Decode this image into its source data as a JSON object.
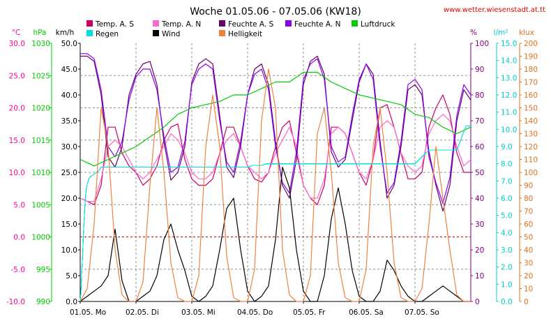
{
  "chart_data": {
    "type": "line",
    "title": "Woche 01.05.06 - 07.05.06 (KW18)",
    "source": "www.wetter.wiesenstadt.at.tt",
    "x_labels": [
      "01.05.  Mo",
      "02.05.  Di",
      "03.05.  Mi",
      "04.05.  Do",
      "05.05.  Fr",
      "06.05.  Sa",
      "07.05.  So"
    ],
    "x_range_hours": [
      0,
      168
    ],
    "grid": true,
    "axes": [
      {
        "id": "temp",
        "unit": "°C",
        "color": "#ff00a0",
        "min": -10,
        "max": 30,
        "ticks": [
          "30.0",
          "25.0",
          "20.0",
          "15.0",
          "10.0",
          "5.0",
          "0.0",
          "-5.0",
          "-10.0"
        ]
      },
      {
        "id": "press",
        "unit": "hPa",
        "color": "#00cc00",
        "min": 990,
        "max": 1030,
        "ticks": [
          "1030",
          "1025",
          "1020",
          "1015",
          "1010",
          "1005",
          "1000",
          "995",
          "990"
        ]
      },
      {
        "id": "wind",
        "unit": "km/h",
        "color": "#000000",
        "min": 0,
        "max": 50,
        "ticks": [
          "50.0",
          "45.0",
          "40.0",
          "35.0",
          "30.0",
          "25.0",
          "20.0",
          "15.0",
          "10.0",
          "5.0",
          "0.0"
        ]
      },
      {
        "id": "hum",
        "unit": "%",
        "color": "#800080",
        "min": 0,
        "max": 100,
        "ticks": [
          "100",
          "90",
          "80",
          "70",
          "60",
          "50",
          "40",
          "30",
          "20",
          "10",
          "0"
        ]
      },
      {
        "id": "rain",
        "unit": "l/m²",
        "color": "#00cccc",
        "min": 0,
        "max": 15,
        "ticks": [
          "15.0",
          "14.0",
          "13.0",
          "12.0",
          "11.0",
          "10.0",
          "9.0",
          "8.0",
          "7.0",
          "6.0",
          "5.0",
          "4.0",
          "3.0",
          "2.0",
          "1.0",
          "0.0"
        ]
      },
      {
        "id": "lux",
        "unit": "klux",
        "color": "#e07020",
        "min": 0,
        "max": 200,
        "ticks": [
          "200",
          "190",
          "180",
          "170",
          "160",
          "150",
          "140",
          "130",
          "120",
          "110",
          "100",
          "90",
          "80",
          "70",
          "60",
          "50",
          "40",
          "30",
          "20",
          "10",
          "0"
        ]
      }
    ],
    "legend": [
      {
        "name": "Temp. A. S",
        "color": "#cc0066"
      },
      {
        "name": "Temp. A. N",
        "color": "#ff66cc"
      },
      {
        "name": "Feuchte A. S",
        "color": "#660066"
      },
      {
        "name": "Feuchte A. N",
        "color": "#8800ee"
      },
      {
        "name": "Luftdruck",
        "color": "#00cc00"
      },
      {
        "name": "Regen",
        "color": "#00e0e0"
      },
      {
        "name": "Wind",
        "color": "#000000"
      },
      {
        "name": "Helligkeit",
        "color": "#f08040"
      }
    ],
    "series": [
      {
        "name": "Temp. A. S",
        "axis": "temp",
        "color": "#cc0066",
        "x": [
          0,
          3,
          6,
          9,
          12,
          15,
          18,
          21,
          24,
          27,
          30,
          33,
          36,
          39,
          42,
          45,
          48,
          51,
          54,
          57,
          60,
          63,
          66,
          69,
          72,
          75,
          78,
          81,
          84,
          87,
          90,
          93,
          96,
          99,
          102,
          105,
          108,
          111,
          114,
          117,
          120,
          123,
          126,
          129,
          132,
          135,
          138,
          141,
          144,
          147,
          150,
          153,
          156,
          159,
          162,
          165,
          168
        ],
        "y": [
          6,
          5.5,
          5,
          8,
          17,
          17,
          13,
          11,
          10,
          8,
          9,
          11,
          15,
          17,
          17.5,
          12,
          9,
          8,
          8,
          9,
          13,
          17,
          17,
          14,
          11,
          9,
          8.5,
          10,
          14,
          17,
          18,
          13,
          8,
          6,
          5,
          8,
          17,
          17,
          16,
          13,
          10,
          8,
          12,
          20,
          20.5,
          17,
          13,
          9,
          9,
          10,
          17,
          20,
          22,
          19,
          13,
          10,
          10
        ]
      },
      {
        "name": "Temp. A. N",
        "axis": "temp",
        "color": "#ff66cc",
        "x": [
          0,
          3,
          6,
          9,
          12,
          15,
          18,
          21,
          24,
          27,
          30,
          33,
          36,
          39,
          42,
          45,
          48,
          51,
          54,
          57,
          60,
          63,
          66,
          69,
          72,
          75,
          78,
          81,
          84,
          87,
          90,
          93,
          96,
          99,
          102,
          105,
          108,
          111,
          114,
          117,
          120,
          123,
          126,
          129,
          132,
          135,
          138,
          141,
          144,
          147,
          150,
          153,
          156,
          159,
          162,
          165,
          168
        ],
        "y": [
          6,
          5.5,
          5.5,
          9,
          14,
          15,
          14,
          12,
          10,
          9,
          10,
          12,
          14,
          16,
          15,
          13,
          10,
          9,
          9,
          10,
          13,
          15,
          16,
          14,
          11,
          10,
          9,
          10,
          13,
          15,
          17,
          14,
          8,
          6,
          6,
          9,
          16,
          17,
          16,
          13,
          10,
          9,
          12,
          17,
          18,
          17,
          13,
          11,
          10,
          11,
          16,
          18,
          19,
          18,
          14,
          11,
          12
        ]
      },
      {
        "name": "Feuchte A. S",
        "axis": "hum",
        "color": "#660066",
        "x": [
          0,
          3,
          6,
          9,
          12,
          15,
          18,
          21,
          24,
          27,
          30,
          33,
          36,
          39,
          42,
          45,
          48,
          51,
          54,
          57,
          60,
          63,
          66,
          69,
          72,
          75,
          78,
          81,
          84,
          87,
          90,
          93,
          96,
          99,
          102,
          105,
          108,
          111,
          114,
          117,
          120,
          123,
          126,
          129,
          132,
          135,
          138,
          141,
          144,
          147,
          150,
          153,
          156,
          159,
          162,
          165,
          168
        ],
        "y": [
          95,
          95,
          93,
          80,
          56,
          52,
          60,
          80,
          88,
          92,
          93,
          84,
          62,
          47,
          50,
          60,
          85,
          92,
          94,
          92,
          72,
          52,
          48,
          60,
          80,
          90,
          92,
          84,
          62,
          45,
          40,
          55,
          84,
          93,
          95,
          88,
          58,
          52,
          55,
          70,
          85,
          92,
          88,
          62,
          40,
          45,
          60,
          82,
          84,
          80,
          58,
          45,
          35,
          45,
          70,
          82,
          78
        ]
      },
      {
        "name": "Feuchte A. N",
        "axis": "hum",
        "color": "#8800ee",
        "x": [
          0,
          3,
          6,
          9,
          12,
          15,
          18,
          21,
          24,
          27,
          30,
          33,
          36,
          39,
          42,
          45,
          48,
          51,
          54,
          57,
          60,
          63,
          66,
          69,
          72,
          75,
          78,
          81,
          84,
          87,
          90,
          93,
          96,
          99,
          102,
          105,
          108,
          111,
          114,
          117,
          120,
          123,
          126,
          129,
          132,
          135,
          138,
          141,
          144,
          147,
          150,
          153,
          156,
          159,
          162,
          165,
          168
        ],
        "y": [
          96,
          96,
          94,
          82,
          60,
          56,
          62,
          78,
          87,
          90,
          90,
          82,
          64,
          50,
          52,
          62,
          84,
          90,
          92,
          90,
          70,
          54,
          50,
          62,
          80,
          88,
          90,
          82,
          60,
          46,
          42,
          58,
          86,
          92,
          94,
          86,
          60,
          54,
          56,
          72,
          86,
          92,
          86,
          60,
          42,
          46,
          62,
          84,
          86,
          82,
          56,
          46,
          38,
          48,
          72,
          84,
          80
        ]
      },
      {
        "name": "Luftdruck",
        "axis": "press",
        "color": "#00cc00",
        "x": [
          0,
          6,
          12,
          18,
          24,
          30,
          36,
          42,
          48,
          54,
          60,
          66,
          72,
          78,
          84,
          90,
          96,
          102,
          108,
          114,
          120,
          126,
          132,
          138,
          144,
          150,
          156,
          162,
          168
        ],
        "y": [
          1012,
          1011,
          1012,
          1013,
          1014,
          1015.5,
          1017,
          1019,
          1020,
          1020.5,
          1021,
          1022,
          1022,
          1023,
          1024,
          1024,
          1025.5,
          1025.5,
          1024,
          1023,
          1022,
          1021.5,
          1021,
          1020.5,
          1019,
          1018.5,
          1017,
          1016,
          1017
        ]
      },
      {
        "name": "Regen",
        "axis": "rain",
        "color": "#00e0e0",
        "x": [
          0,
          0.3,
          0.6,
          1,
          1.4,
          1.8,
          2.2,
          2.6,
          3,
          3.4,
          4,
          6,
          8,
          9,
          12,
          24,
          48,
          72,
          74,
          78,
          80,
          96,
          100,
          120,
          130,
          144,
          150,
          158,
          162,
          166,
          168
        ],
        "y": [
          0,
          0.5,
          1.5,
          2.5,
          4,
          5,
          6,
          6.5,
          6.8,
          7,
          7.2,
          7.4,
          7.6,
          7.8,
          7.8,
          7.8,
          7.8,
          7.8,
          7.9,
          7.9,
          8,
          8,
          8,
          8,
          8,
          8,
          8.8,
          8.8,
          8.8,
          10.2,
          10.2
        ]
      },
      {
        "name": "Wind",
        "axis": "wind",
        "color": "#000000",
        "x": [
          0,
          3,
          6,
          9,
          12,
          15,
          18,
          21,
          24,
          27,
          30,
          33,
          36,
          39,
          42,
          45,
          48,
          51,
          54,
          57,
          60,
          63,
          66,
          69,
          72,
          75,
          78,
          81,
          84,
          87,
          90,
          93,
          96,
          99,
          102,
          105,
          108,
          111,
          114,
          117,
          120,
          123,
          126,
          129,
          132,
          135,
          138,
          141,
          144,
          147,
          150,
          153,
          156,
          159,
          162,
          165,
          168
        ],
        "y": [
          0,
          1,
          2,
          3,
          5,
          14,
          4,
          0,
          0,
          1,
          2,
          5,
          12,
          15,
          10,
          6,
          1,
          0,
          1,
          3,
          10,
          18,
          20,
          10,
          2,
          0,
          1,
          3,
          12,
          26,
          22,
          10,
          2,
          0,
          0,
          5,
          16,
          22,
          15,
          6,
          1,
          0,
          0,
          2,
          8,
          6,
          3,
          1,
          0,
          0,
          1,
          2,
          3,
          2,
          1,
          0,
          0
        ]
      },
      {
        "name": "Helligkeit",
        "axis": "lux",
        "color": "#f08040",
        "x": [
          0,
          3,
          6,
          9,
          12,
          15,
          18,
          21,
          24,
          27,
          30,
          33,
          36,
          39,
          42,
          45,
          48,
          51,
          54,
          57,
          60,
          63,
          66,
          69,
          72,
          75,
          78,
          81,
          84,
          87,
          90,
          93,
          96,
          99,
          102,
          105,
          108,
          111,
          114,
          117,
          120,
          123,
          126,
          129,
          132,
          135,
          138,
          141,
          144,
          147,
          150,
          153,
          156,
          159,
          162,
          165,
          168
        ],
        "y": [
          0,
          10,
          60,
          150,
          120,
          40,
          5,
          0,
          0,
          15,
          90,
          150,
          100,
          30,
          3,
          0,
          0,
          20,
          120,
          160,
          120,
          35,
          3,
          0,
          0,
          25,
          140,
          180,
          150,
          40,
          5,
          0,
          0,
          20,
          130,
          150,
          100,
          30,
          3,
          0,
          0,
          25,
          120,
          150,
          100,
          30,
          3,
          0,
          0,
          10,
          60,
          120,
          80,
          40,
          5,
          0,
          0
        ]
      }
    ]
  }
}
